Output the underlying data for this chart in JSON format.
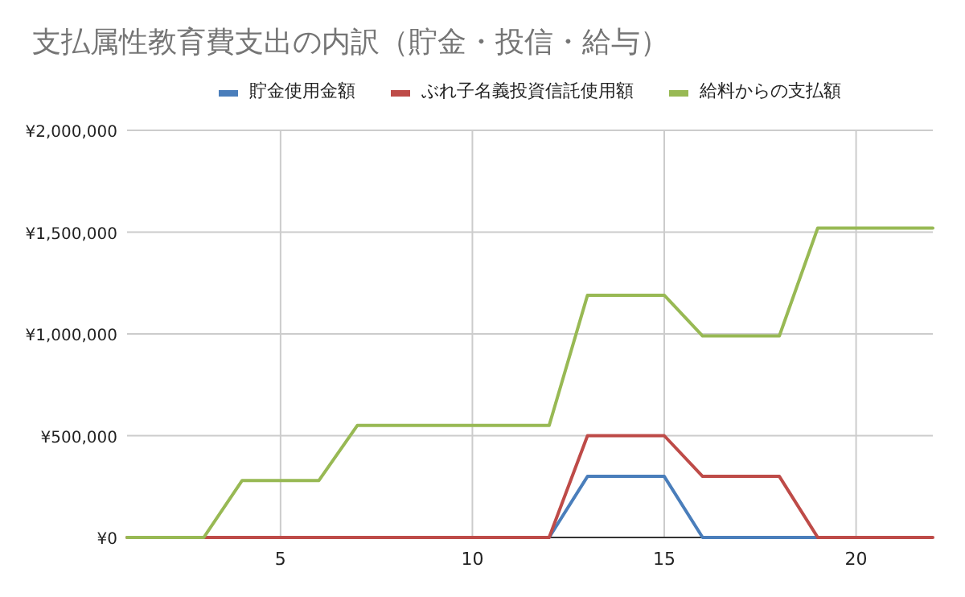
{
  "chart_data": {
    "type": "line",
    "title": "支払属性教育費支出の内訳（貯金・投信・給与）",
    "x": [
      1,
      2,
      3,
      4,
      5,
      6,
      7,
      8,
      9,
      10,
      11,
      12,
      13,
      14,
      15,
      16,
      17,
      18,
      19,
      20,
      21,
      22
    ],
    "series": [
      {
        "name": "貯金使用金額",
        "color": "#4a7ebb",
        "values": [
          null,
          null,
          null,
          null,
          null,
          null,
          null,
          null,
          null,
          null,
          null,
          0,
          300000,
          300000,
          300000,
          0,
          0,
          0,
          0,
          null,
          null,
          null
        ]
      },
      {
        "name": "ぶれ子名義投資信託使用額",
        "color": "#be4b48",
        "values": [
          0,
          0,
          0,
          0,
          0,
          0,
          0,
          0,
          0,
          0,
          0,
          0,
          500000,
          500000,
          500000,
          300000,
          300000,
          300000,
          0,
          0,
          0,
          0
        ]
      },
      {
        "name": "給料からの支払額",
        "color": "#98b954",
        "values": [
          0,
          0,
          0,
          280000,
          280000,
          280000,
          550000,
          550000,
          550000,
          550000,
          550000,
          550000,
          1190000,
          1190000,
          1190000,
          990000,
          990000,
          990000,
          1520000,
          1520000,
          1520000,
          1520000
        ]
      }
    ],
    "xlim": [
      1,
      22
    ],
    "xticks": [
      5,
      10,
      15,
      20
    ],
    "ylim": [
      0,
      2000000
    ],
    "yticks": [
      {
        "value": 0,
        "label": "¥0"
      },
      {
        "value": 500000,
        "label": "¥500,000"
      },
      {
        "value": 1000000,
        "label": "¥1,000,000"
      },
      {
        "value": 1500000,
        "label": "¥1,500,000"
      },
      {
        "value": 2000000,
        "label": "¥2,000,000"
      }
    ],
    "grid": true,
    "legend": "top",
    "marker": "none",
    "line_style": "solid"
  }
}
